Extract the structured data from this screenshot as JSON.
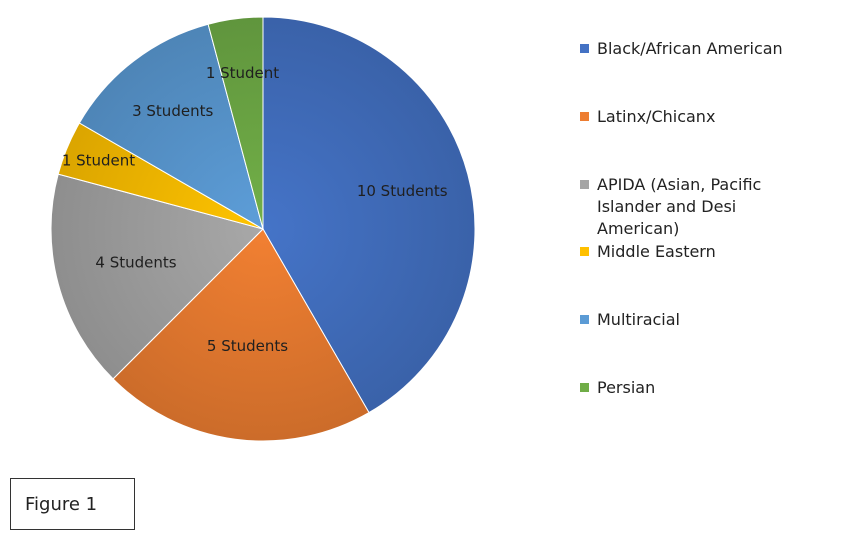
{
  "figure_label": "Figure 1",
  "colors": {
    "black_african_american": "#4472C4",
    "latinx_chicanx": "#ED7D31",
    "apida": "#A5A5A5",
    "middle_eastern": "#FFC000",
    "multiracial": "#5B9BD5",
    "persian": "#70AD47"
  },
  "chart_data": {
    "type": "pie",
    "title": "",
    "legend_position": "right",
    "start_angle_deg": 0,
    "direction": "clockwise",
    "slices": [
      {
        "name": "Black/African American",
        "value": 10,
        "label": "10 Students",
        "color": "#4472C4"
      },
      {
        "name": "Latinx/Chicanx",
        "value": 5,
        "label": "5 Students",
        "color": "#ED7D31"
      },
      {
        "name": "APIDA (Asian, Pacific Islander and Desi American)",
        "value": 4,
        "label": "4 Students",
        "color": "#A5A5A5"
      },
      {
        "name": "Middle Eastern",
        "value": 1,
        "label": "1 Student",
        "color": "#FFC000"
      },
      {
        "name": "Multiracial",
        "value": 3,
        "label": "3 Students",
        "color": "#5B9BD5"
      },
      {
        "name": "Persian",
        "value": 1,
        "label": "1 Student",
        "color": "#70AD47"
      }
    ]
  }
}
